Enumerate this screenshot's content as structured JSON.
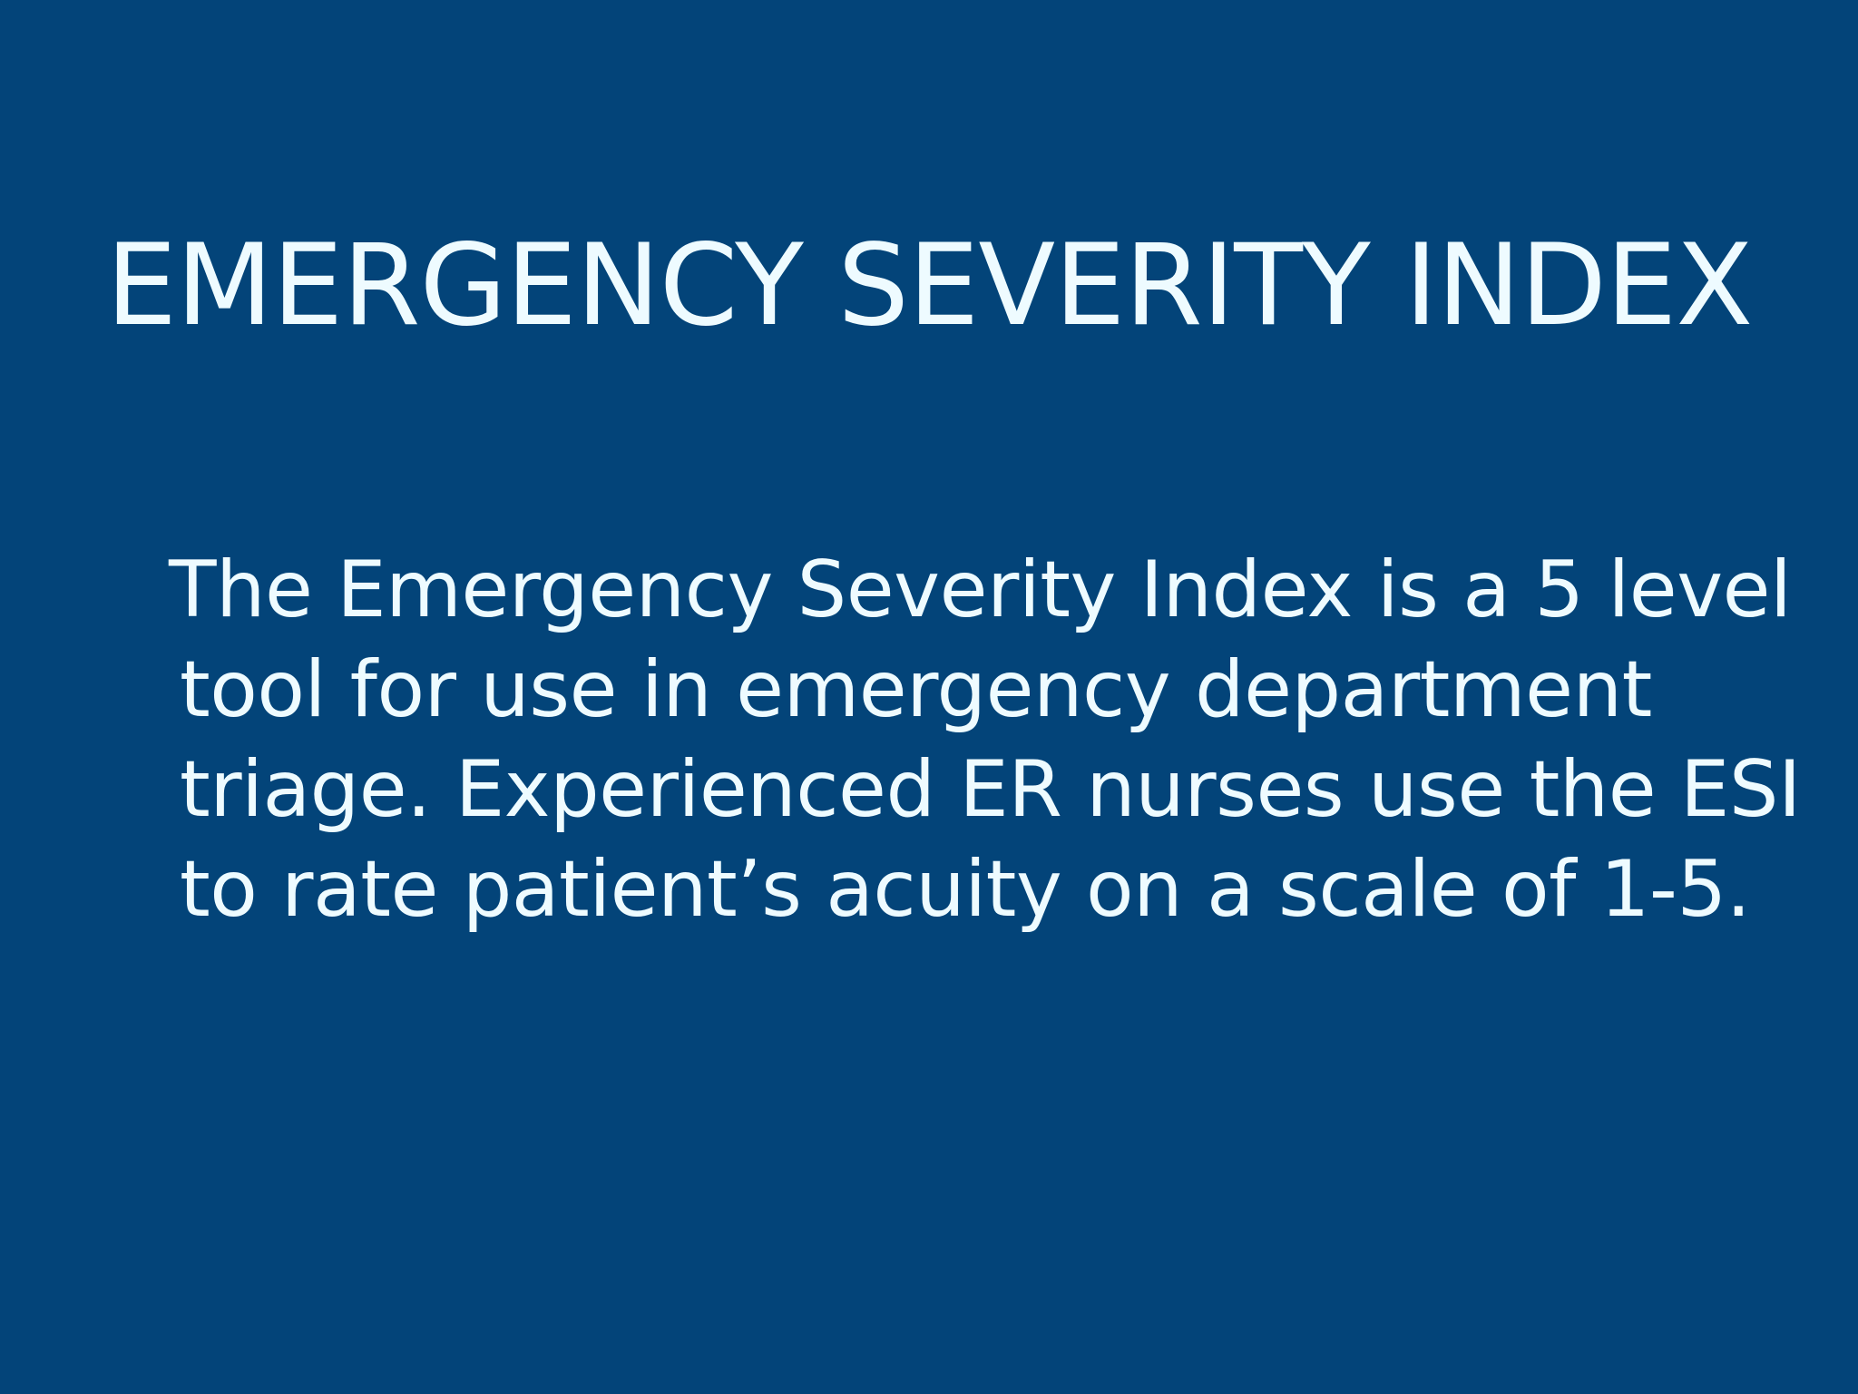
{
  "slide": {
    "background_color": "#034479",
    "text_color": "#eefbff",
    "title": "EMERGENCY SEVERITY INDEX",
    "body_lines": [
      "The Emergency Severity Index is a 5 level",
      "tool for use in emergency department",
      "triage. Experienced ER nurses use the ESI",
      "to rate patient’s acuity on a scale of 1-5."
    ]
  }
}
